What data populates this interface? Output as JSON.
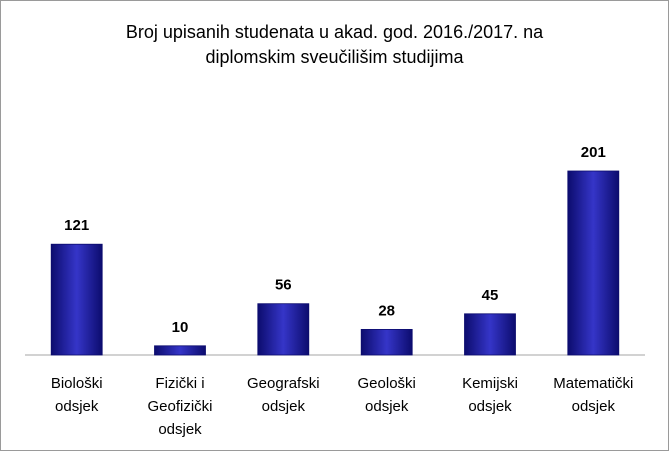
{
  "title_lines": [
    "Broj upisanih studenata u akad. god. 2016./2017. na",
    "diplomskim sveučilišim studijima"
  ],
  "colors": {
    "bar": "#1a1aa0",
    "bar_dark": "#0c0c6e",
    "bar_light": "#3535c8",
    "axis": "#a6a6a6"
  },
  "chart_data": {
    "type": "bar",
    "title": "Broj upisanih studenata u akad. god. 2016./2017. na diplomskim sveučilišim studijima",
    "categories": [
      [
        "Biološki",
        "odsjek"
      ],
      [
        "Fizički i",
        "Geofizički",
        "odsjek"
      ],
      [
        "Geografski",
        "odsjek"
      ],
      [
        "Geološki",
        "odsjek"
      ],
      [
        "Kemijski",
        "odsjek"
      ],
      [
        "Matematički",
        "odsjek"
      ]
    ],
    "values": [
      121,
      10,
      56,
      28,
      45,
      201
    ],
    "ylim": [
      0,
      201
    ],
    "grid": false,
    "legend": "none"
  }
}
